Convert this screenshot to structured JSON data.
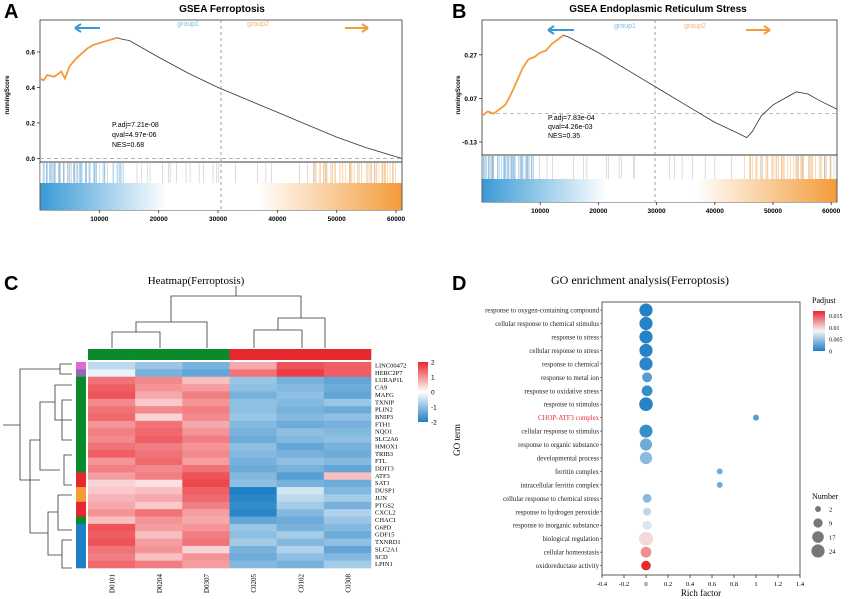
{
  "colors": {
    "orange": "#f39c3a",
    "blue": "#3a9ad6",
    "heat_red": "#e8282f",
    "heat_blue": "#1e7fc4",
    "green": "#0a8a2a",
    "red_bar": "#e8282f"
  },
  "panel_labels": [
    "A",
    "B",
    "C",
    "D"
  ],
  "chart_data": [
    {
      "type": "line",
      "title": "GSEA Ferroptosis",
      "group1": "group1",
      "group2": "group2",
      "ylabel": "runningScore",
      "yticks": [
        "0.6",
        "0.4",
        "0.2",
        "0.0"
      ],
      "ytick_values": [
        0.6,
        0.4,
        0.2,
        0.0
      ],
      "ylim": [
        -0.02,
        0.78
      ],
      "xticks": [
        "10000",
        "20000",
        "30000",
        "40000",
        "50000",
        "60000"
      ],
      "xtick_values": [
        10000,
        20000,
        30000,
        40000,
        50000,
        60000
      ],
      "xlim": [
        0,
        61000
      ],
      "zero_line": 0.0,
      "stats": [
        "P.adj=7.21e-08",
        "qval=4.97e-06",
        "NES=0.68"
      ],
      "series": [
        {
          "name": "runningScore",
          "x": [
            0,
            600,
            1200,
            2400,
            3600,
            4200,
            5000,
            6000,
            7000,
            8000,
            9000,
            10000,
            11000,
            12000,
            13000,
            14000,
            15000,
            20000,
            25000,
            30000,
            35000,
            40000,
            45000,
            50000,
            55000,
            61000
          ],
          "y": [
            0.45,
            0.44,
            0.47,
            0.46,
            0.49,
            0.45,
            0.52,
            0.56,
            0.59,
            0.62,
            0.64,
            0.65,
            0.66,
            0.67,
            0.68,
            0.67,
            0.665,
            0.57,
            0.48,
            0.4,
            0.33,
            0.26,
            0.19,
            0.12,
            0.06,
            0.0
          ]
        }
      ],
      "hit_dense_ranges": [
        [
          0,
          14000
        ],
        [
          46000,
          60000
        ]
      ]
    },
    {
      "type": "line",
      "title": "GSEA Endoplasmic Reticulum Stress",
      "group1": "group1",
      "group2": "group2",
      "ylabel": "runningScore",
      "yticks": [
        "0.27",
        "0.07",
        "-0.13"
      ],
      "ytick_values": [
        0.27,
        0.07,
        -0.13
      ],
      "ylim": [
        -0.19,
        0.43
      ],
      "xticks": [
        "10000",
        "20000",
        "30000",
        "40000",
        "50000",
        "60000"
      ],
      "xtick_values": [
        10000,
        20000,
        30000,
        40000,
        50000,
        60000
      ],
      "xlim": [
        0,
        61000
      ],
      "zero_line": 0.0,
      "stats": [
        "P.adj=7.83e-04",
        "qval=4.26e-03",
        "NES=0.35"
      ],
      "series": [
        {
          "name": "runningScore",
          "x": [
            0,
            1000,
            2000,
            3000,
            4000,
            5000,
            6000,
            7000,
            8000,
            9000,
            10000,
            11000,
            12000,
            13000,
            14000,
            15000,
            20000,
            25000,
            30000,
            35000,
            40000,
            44000,
            45500,
            46500,
            48000,
            50000,
            52000,
            54000,
            56000,
            58000,
            61000
          ],
          "y": [
            -0.01,
            0.01,
            0.0,
            0.02,
            0.04,
            0.09,
            0.15,
            0.21,
            0.25,
            0.26,
            0.28,
            0.29,
            0.32,
            0.34,
            0.36,
            0.35,
            0.28,
            0.2,
            0.12,
            0.04,
            -0.04,
            -0.09,
            -0.11,
            -0.08,
            -0.01,
            0.04,
            0.07,
            0.1,
            0.09,
            0.06,
            0.02
          ]
        }
      ],
      "hit_dense_ranges": [
        [
          0,
          9000
        ],
        [
          45000,
          60000
        ]
      ]
    },
    {
      "type": "heatmap",
      "title": "Heatmap(Ferroptosis)",
      "columns": [
        "D0101",
        "D0204",
        "D0307",
        "C0205",
        "C0102",
        "C0308"
      ],
      "rows": [
        "LINC00472",
        "HERC2P7",
        "LURAP1L",
        "CA9",
        "MAFG",
        "TXNIP",
        "PLIN2",
        "BNIP3",
        "FTH1",
        "NQO1",
        "SLC2A6",
        "HMOX1",
        "TRIB3",
        "FTL",
        "DDIT3",
        "ATF3",
        "SAT1",
        "DUSP1",
        "JUN",
        "PTGS2",
        "CXCL2",
        "CHAC1",
        "G6PD",
        "GDF15",
        "TXNRD1",
        "SLC2A1",
        "SCD",
        "LPIN1"
      ],
      "values": [
        [
          -0.6,
          -0.9,
          -1.2,
          0.8,
          1.6,
          1.5
        ],
        [
          -0.2,
          -1.2,
          -1.4,
          1.3,
          1.8,
          1.5
        ],
        [
          1.3,
          1.1,
          0.6,
          -0.9,
          -1.2,
          -1.4
        ],
        [
          1.5,
          1.0,
          0.9,
          -1.0,
          -1.1,
          -1.3
        ],
        [
          1.6,
          0.8,
          1.2,
          -1.2,
          -1.0,
          -1.4
        ],
        [
          1.1,
          0.5,
          1.0,
          -1.0,
          -1.1,
          -0.9
        ],
        [
          1.3,
          1.1,
          1.2,
          -1.0,
          -1.2,
          -1.3
        ],
        [
          1.4,
          0.4,
          1.1,
          -0.9,
          -1.1,
          -1.0
        ],
        [
          1.0,
          1.3,
          0.8,
          -1.1,
          -1.3,
          -1.2
        ],
        [
          1.2,
          1.4,
          1.0,
          -1.2,
          -1.0,
          -1.1
        ],
        [
          1.1,
          1.5,
          1.2,
          -1.3,
          -1.1,
          -1.0
        ],
        [
          1.3,
          1.2,
          1.0,
          -1.0,
          -1.4,
          -1.2
        ],
        [
          1.5,
          1.3,
          1.1,
          -1.1,
          -1.2,
          -1.3
        ],
        [
          1.0,
          1.4,
          0.9,
          -1.2,
          -1.0,
          -1.1
        ],
        [
          1.2,
          1.1,
          1.3,
          -1.3,
          -1.2,
          -1.4
        ],
        [
          0.9,
          1.2,
          1.6,
          -1.1,
          -1.5,
          0.6
        ],
        [
          0.4,
          0.3,
          1.7,
          -1.0,
          -1.2,
          -1.3
        ],
        [
          0.5,
          0.6,
          1.5,
          -2.0,
          -0.4,
          -1.1
        ],
        [
          0.7,
          0.8,
          1.4,
          -1.9,
          -0.6,
          -0.8
        ],
        [
          0.8,
          0.5,
          1.2,
          -1.8,
          -0.8,
          -1.2
        ],
        [
          1.0,
          1.3,
          0.9,
          -1.9,
          -1.1,
          -0.7
        ],
        [
          0.6,
          1.0,
          0.8,
          -1.4,
          -1.3,
          -0.9
        ],
        [
          1.6,
          0.9,
          1.0,
          -0.9,
          -1.2,
          -1.1
        ],
        [
          1.5,
          0.6,
          1.2,
          -1.0,
          -0.8,
          -1.3
        ],
        [
          1.6,
          0.9,
          1.3,
          -0.8,
          -1.1,
          -1.0
        ],
        [
          1.3,
          1.0,
          0.4,
          -1.2,
          -0.7,
          -1.4
        ],
        [
          1.2,
          0.6,
          1.0,
          -1.3,
          -1.0,
          -1.1
        ],
        [
          1.4,
          1.2,
          0.9,
          -1.1,
          -1.2,
          -0.8
        ]
      ],
      "column_groups": [
        "green",
        "green",
        "green",
        "red",
        "red",
        "red"
      ],
      "legend_ticks": [
        "2",
        "1",
        "0",
        "-1",
        "-2"
      ],
      "legend_values": [
        2,
        1,
        0,
        -1,
        -2
      ],
      "row_groups": [
        "pink",
        "purple",
        "green",
        "green",
        "green",
        "green",
        "green",
        "green",
        "green",
        "green",
        "green",
        "green",
        "green",
        "green",
        "green",
        "red",
        "red",
        "orange",
        "orange",
        "red",
        "red",
        "green",
        "blue",
        "blue",
        "blue",
        "blue",
        "blue",
        "blue"
      ]
    },
    {
      "type": "scatter",
      "title": "GO enrichment analysis(Ferroptosis)",
      "xlabel": "Rich factor",
      "ylabel": "GO term",
      "xlim": [
        -0.4,
        1.4
      ],
      "xticks": [
        "-0.4",
        "-0.2",
        "0",
        "0.2",
        "0.4",
        "0.6",
        "0.8",
        "1",
        "1.2",
        "1.4"
      ],
      "xtick_values": [
        -0.4,
        -0.2,
        0,
        0.2,
        0.4,
        0.6,
        0.8,
        1.0,
        1.2,
        1.4
      ],
      "highlight_term": "CHOP-ATF3 complex",
      "terms": [
        "response to oxygen-containing compound",
        "cellular response to chemical stimulus",
        "response to stress",
        "cellular response to stress",
        "response to chemical",
        "response to metal ion",
        "response to oxidative stress",
        "response to stimulus",
        "CHOP-ATF3 complex",
        "cellular response to stimulus",
        "response to organic substance",
        "developmental process",
        "ferritin complex",
        "intracellular ferritin complex",
        "cellular response to chemical stress",
        "response to hydrogen peroxide",
        "response to inorganic substance",
        "biological regulation",
        "cellular homeostasis",
        "oxidoreductase activity"
      ],
      "rich_factor": [
        0.0,
        0.0,
        0.0,
        0.0,
        0.0,
        0.01,
        0.01,
        0.0,
        1.0,
        0.0,
        0.0,
        0.0,
        0.67,
        0.67,
        0.01,
        0.01,
        0.01,
        0.0,
        0.0,
        0.0
      ],
      "count": [
        24,
        24,
        24,
        24,
        24,
        11,
        14,
        26,
        2,
        23,
        19,
        20,
        2,
        2,
        8,
        6,
        9,
        28,
        14,
        10
      ],
      "padjust": [
        0.0002,
        0.0003,
        0.0003,
        0.0003,
        0.0005,
        0.002,
        0.001,
        0.0003,
        0.002,
        0.001,
        0.003,
        0.004,
        0.003,
        0.003,
        0.004,
        0.006,
        0.007,
        0.009,
        0.012,
        0.016
      ],
      "legend_padjust_title": "Padjust",
      "legend_padjust_ticks": [
        "0.015",
        "0.01",
        "0.005",
        "0"
      ],
      "legend_padjust_values": [
        0.015,
        0.01,
        0.005,
        0
      ],
      "legend_number_title": "Number",
      "legend_number_ticks": [
        "2",
        "9",
        "17",
        "24"
      ],
      "legend_number_values": [
        2,
        9,
        17,
        24
      ]
    }
  ]
}
